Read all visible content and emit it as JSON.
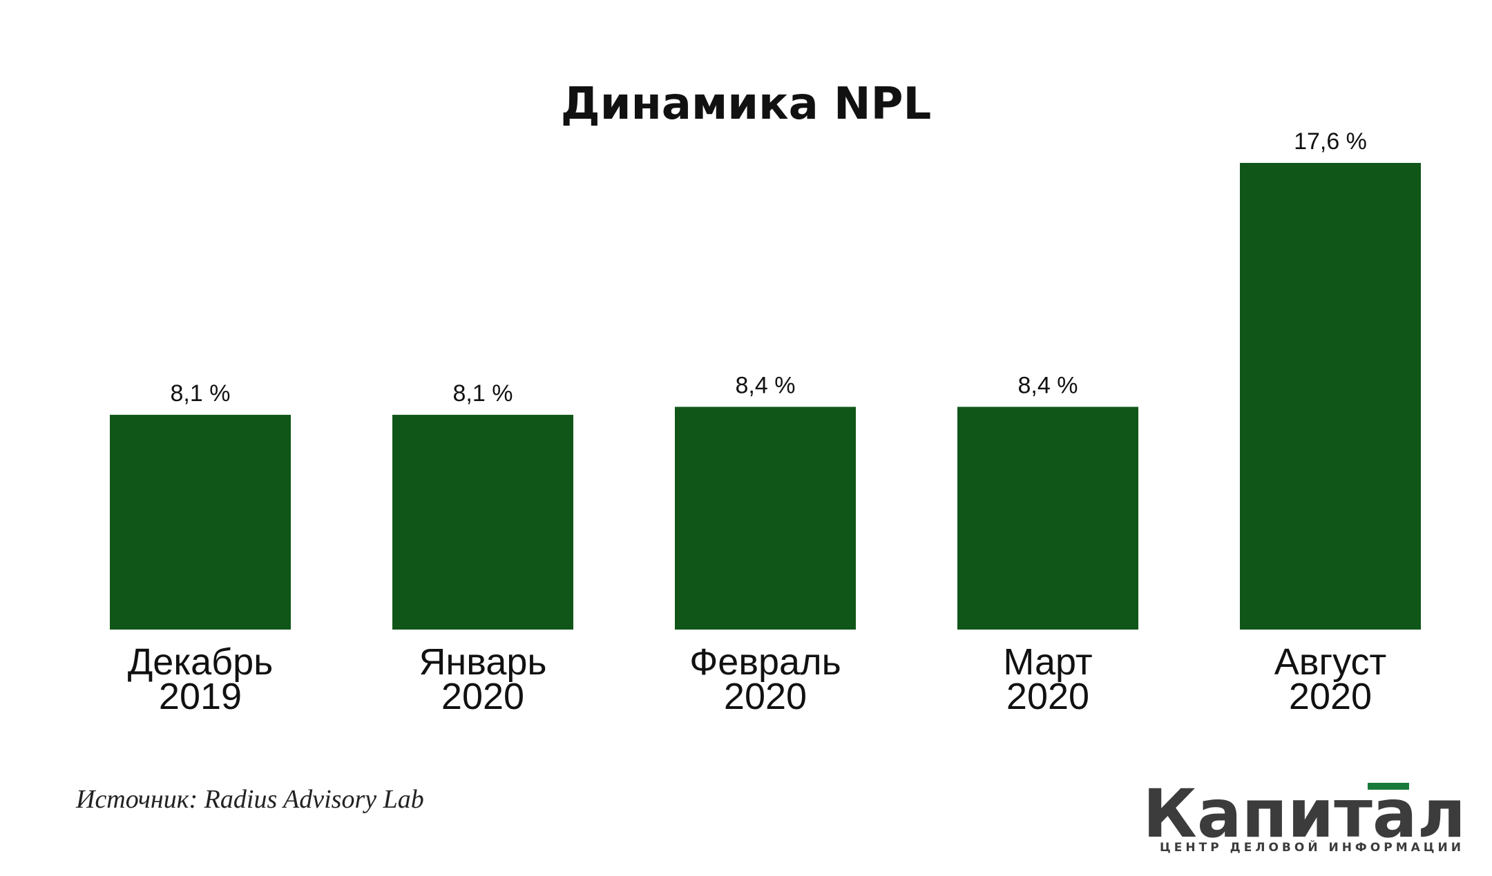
{
  "chart_data": {
    "type": "bar",
    "title": "Динамика NPL",
    "categories": [
      [
        "Декабрь",
        "2019"
      ],
      [
        "Январь",
        "2020"
      ],
      [
        "Февраль",
        "2020"
      ],
      [
        "Март",
        "2020"
      ],
      [
        "Август",
        "2020"
      ]
    ],
    "values": [
      8.1,
      8.1,
      8.4,
      8.4,
      17.6
    ],
    "value_labels": [
      "8,1 %",
      "8,1 %",
      "8,4 %",
      "8,4 %",
      "17,6 %"
    ],
    "unit": "%",
    "xlabel": "",
    "ylabel": "",
    "ylim": [
      0,
      17.6
    ],
    "grid": false,
    "legend": "none",
    "colors": {
      "bar": "#105618"
    }
  },
  "source": "Источник: Radius Advisory Lab",
  "logo": {
    "name": "Капитал",
    "tagline": "ЦЕНТР ДЕЛОВОЙ ИНФОРМАЦИИ",
    "accent_color": "#1a7a3c"
  }
}
